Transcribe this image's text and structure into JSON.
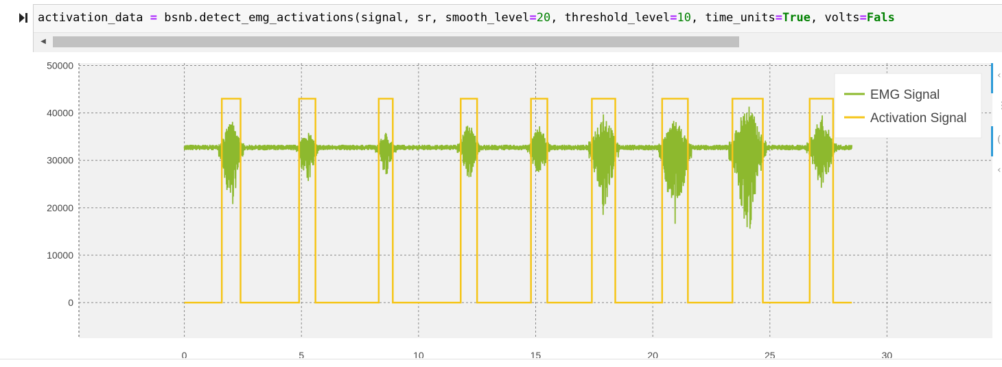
{
  "cell": {
    "code_tokens": [
      {
        "t": "activation_data ",
        "c": ""
      },
      {
        "t": "=",
        "c": "tok-op"
      },
      {
        "t": " bsnb.detect_emg_activations(signal, sr, smooth_level",
        "c": ""
      },
      {
        "t": "=",
        "c": "tok-op"
      },
      {
        "t": "20",
        "c": "tok-num"
      },
      {
        "t": ", threshold_level",
        "c": ""
      },
      {
        "t": "=",
        "c": "tok-op"
      },
      {
        "t": "10",
        "c": "tok-num"
      },
      {
        "t": ", time_units",
        "c": ""
      },
      {
        "t": "=",
        "c": "tok-op"
      },
      {
        "t": "True",
        "c": "tok-kw"
      },
      {
        "t": ", volts",
        "c": ""
      },
      {
        "t": "=",
        "c": "tok-op"
      },
      {
        "t": "Fals",
        "c": "tok-kw"
      }
    ],
    "scroll_left_arrow": "◀"
  },
  "side_glyphs": [
    "‹",
    "⋮",
    "(",
    "‹"
  ],
  "chart_data": {
    "type": "line",
    "xlim": [
      -4.5,
      34.5
    ],
    "ylim": [
      -7500,
      50500
    ],
    "x_ticks": [
      0,
      5,
      10,
      15,
      20,
      25,
      30
    ],
    "y_ticks": [
      0,
      10000,
      20000,
      30000,
      40000,
      50000
    ],
    "grid": true,
    "legend_position": "top-right",
    "baseline": 32700,
    "series": [
      {
        "name": "EMG Signal",
        "color": "#8db92e"
      },
      {
        "name": "Activation Signal",
        "color": "#f5c518"
      }
    ],
    "activation_level": 43000,
    "bursts": [
      {
        "start": 1.6,
        "end": 2.4,
        "min": 19000,
        "max": 38800
      },
      {
        "start": 4.9,
        "end": 5.6,
        "min": 24000,
        "max": 36500
      },
      {
        "start": 8.3,
        "end": 8.9,
        "min": 25500,
        "max": 36000
      },
      {
        "start": 11.8,
        "end": 12.5,
        "min": 25000,
        "max": 38500
      },
      {
        "start": 14.8,
        "end": 15.5,
        "min": 25200,
        "max": 37800
      },
      {
        "start": 17.4,
        "end": 18.4,
        "min": 17300,
        "max": 41300
      },
      {
        "start": 20.4,
        "end": 21.5,
        "min": 15000,
        "max": 39000
      },
      {
        "start": 23.4,
        "end": 24.7,
        "min": 12800,
        "max": 43000
      },
      {
        "start": 26.7,
        "end": 27.7,
        "min": 22800,
        "max": 40000
      }
    ],
    "signal_span": [
      0,
      28.5
    ]
  }
}
